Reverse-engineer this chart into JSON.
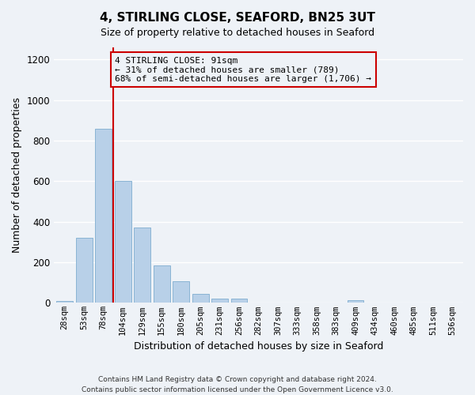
{
  "title": "4, STIRLING CLOSE, SEAFORD, BN25 3UT",
  "subtitle": "Size of property relative to detached houses in Seaford",
  "xlabel": "Distribution of detached houses by size in Seaford",
  "ylabel": "Number of detached properties",
  "bar_labels": [
    "28sqm",
    "53sqm",
    "78sqm",
    "104sqm",
    "129sqm",
    "155sqm",
    "180sqm",
    "205sqm",
    "231sqm",
    "256sqm",
    "282sqm",
    "307sqm",
    "333sqm",
    "358sqm",
    "383sqm",
    "409sqm",
    "434sqm",
    "460sqm",
    "485sqm",
    "511sqm",
    "536sqm"
  ],
  "bar_heights": [
    10,
    320,
    860,
    600,
    370,
    185,
    105,
    45,
    20,
    20,
    0,
    0,
    0,
    0,
    0,
    15,
    0,
    0,
    0,
    0,
    0
  ],
  "bar_color": "#b8d0e8",
  "bar_edge_color": "#8ab4d4",
  "vline_x_index": 2.5,
  "vline_color": "#cc0000",
  "ylim": [
    0,
    1260
  ],
  "yticks": [
    0,
    200,
    400,
    600,
    800,
    1000,
    1200
  ],
  "annotation_line1": "4 STIRLING CLOSE: 91sqm",
  "annotation_line2": "← 31% of detached houses are smaller (789)",
  "annotation_line3": "68% of semi-detached houses are larger (1,706) →",
  "box_color": "#cc0000",
  "footer_line1": "Contains HM Land Registry data © Crown copyright and database right 2024.",
  "footer_line2": "Contains public sector information licensed under the Open Government Licence v3.0.",
  "background_color": "#eef2f7",
  "plot_bg_color": "#eef2f7",
  "grid_color": "#ffffff",
  "title_fontsize": 11,
  "subtitle_fontsize": 9,
  "ylabel_fontsize": 9,
  "xlabel_fontsize": 9,
  "tick_fontsize": 7.5,
  "ann_fontsize": 8,
  "footer_fontsize": 6.5
}
